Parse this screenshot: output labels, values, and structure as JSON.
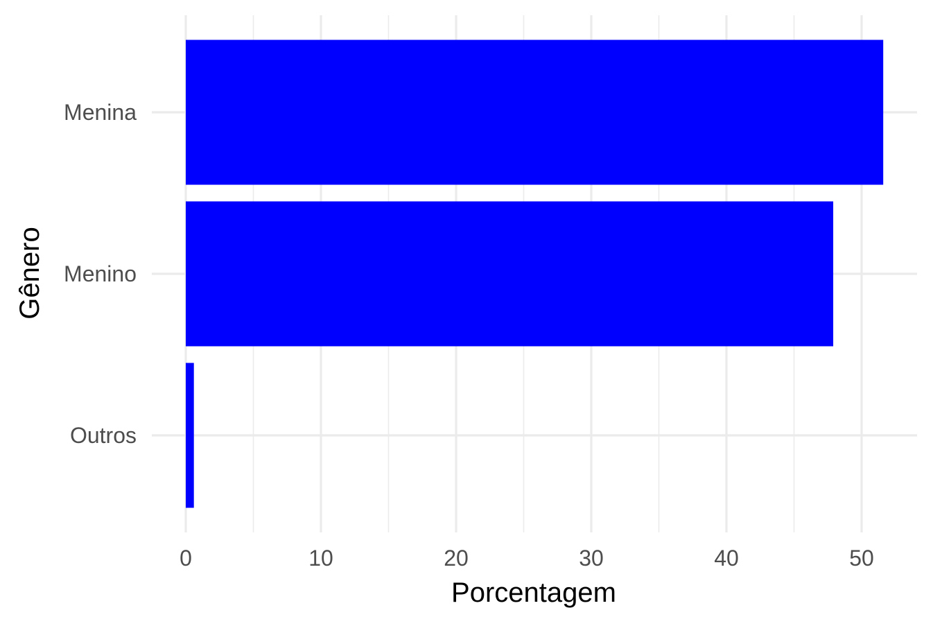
{
  "chart_data": {
    "type": "bar",
    "orientation": "horizontal",
    "categories": [
      "Menina",
      "Menino",
      "Outros"
    ],
    "values": [
      51.6,
      47.9,
      0.6
    ],
    "bar_color": "#0000ff",
    "xlabel": "Porcentagem",
    "ylabel": "Gênero",
    "xlim": [
      0,
      54
    ],
    "x_ticks": [
      0,
      10,
      20,
      30,
      40,
      50
    ],
    "x_minor_ticks": [
      5,
      15,
      25,
      35,
      45
    ],
    "grid": true,
    "legend": "none"
  }
}
